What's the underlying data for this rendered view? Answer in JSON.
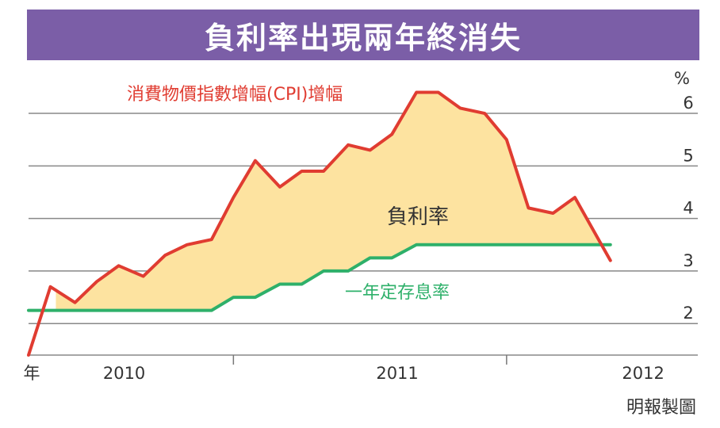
{
  "chart_data": {
    "type": "line",
    "title": "負利率出現兩年終消失",
    "unit_label": "%",
    "y_ticks": [
      "2",
      "3",
      "4",
      "5",
      "6"
    ],
    "ylim": [
      1.4,
      6.8
    ],
    "x_start_label": "年",
    "x_tick_labels": [
      "2010",
      "2011",
      "2012"
    ],
    "x_divider_ticks": [
      2010.5,
      2011.5
    ],
    "area_label": "負利率",
    "source": "明報製圖",
    "series": [
      {
        "name": "消費物價指數增幅(CPI)增幅",
        "color": "#e03c31",
        "x": [
          2009.75,
          2009.83,
          2009.92,
          2010.0,
          2010.08,
          2010.17,
          2010.25,
          2010.33,
          2010.42,
          2010.5,
          2010.58,
          2010.67,
          2010.75,
          2010.83,
          2010.92,
          2011.0,
          2011.08,
          2011.17,
          2011.25,
          2011.33,
          2011.42,
          2011.5,
          2011.58,
          2011.67,
          2011.75
        ],
        "values": [
          1.4,
          2.7,
          2.4,
          2.8,
          3.1,
          2.9,
          3.3,
          3.5,
          3.6,
          4.4,
          5.1,
          4.6,
          4.9,
          4.9,
          5.4,
          5.3,
          5.6,
          6.4,
          6.4,
          6.1,
          6.0,
          5.5,
          4.2,
          4.1,
          4.4
        ],
        "tail": {
          "x": 2011.88,
          "value": 3.2
        }
      },
      {
        "name": "一年定存息率",
        "color": "#2eb06a",
        "x": [
          2009.75,
          2010.42,
          2010.5,
          2010.58,
          2010.67,
          2010.75,
          2010.83,
          2010.92,
          2011.0,
          2011.08,
          2011.17,
          2011.88
        ],
        "values": [
          2.25,
          2.25,
          2.5,
          2.5,
          2.75,
          2.75,
          3.0,
          3.0,
          3.25,
          3.25,
          3.5,
          3.5
        ]
      }
    ],
    "gridlines": true
  }
}
